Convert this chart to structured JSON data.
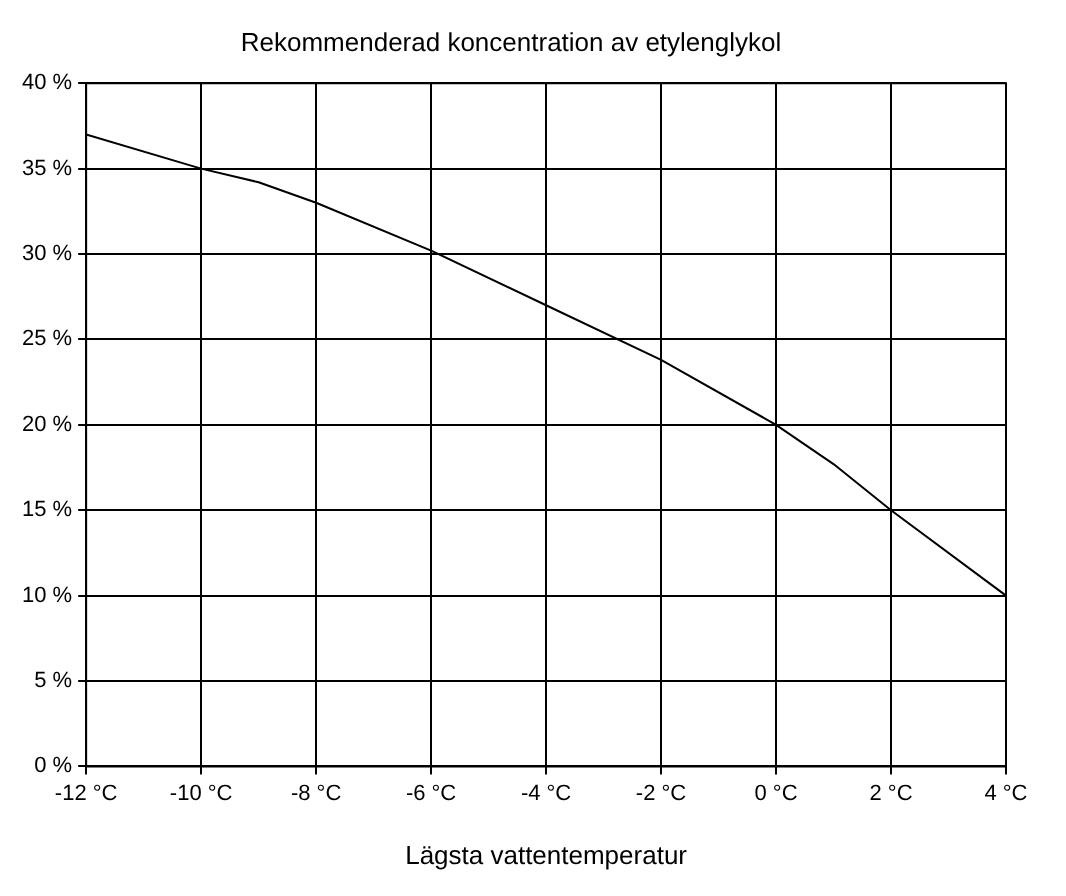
{
  "chart_data": {
    "type": "line",
    "title": "Rekommenderad koncentration av etylenglykol",
    "xlabel": "Lägsta vattentemperatur",
    "x": [
      -12,
      -10,
      -9,
      -8,
      -6,
      -4,
      -2,
      0,
      1,
      2,
      4
    ],
    "series": [
      {
        "color": "#000000",
        "values": [
          37,
          35,
          34.2,
          33,
          30.2,
          27,
          23.8,
          20,
          17.7,
          15,
          10
        ]
      }
    ],
    "xlim": [
      -12,
      4
    ],
    "xticks": [
      {
        "value": -12,
        "label": "-12 °C"
      },
      {
        "value": -10,
        "label": "-10 °C"
      },
      {
        "value": -8,
        "label": "-8 °C"
      },
      {
        "value": -6,
        "label": "-6 °C"
      },
      {
        "value": -4,
        "label": "-4 °C"
      },
      {
        "value": -2,
        "label": "-2 °C"
      },
      {
        "value": 0,
        "label": "0 °C"
      },
      {
        "value": 2,
        "label": "2 °C"
      },
      {
        "value": 4,
        "label": "4 °C"
      }
    ],
    "ylim": [
      0,
      40
    ],
    "yticks": [
      {
        "value": 0,
        "label": "0 %"
      },
      {
        "value": 5,
        "label": "5 %"
      },
      {
        "value": 10,
        "label": "10 %"
      },
      {
        "value": 15,
        "label": "15 %"
      },
      {
        "value": 20,
        "label": "20 %"
      },
      {
        "value": 25,
        "label": "25 %"
      },
      {
        "value": 30,
        "label": "30 %"
      },
      {
        "value": 35,
        "label": "35 %"
      },
      {
        "value": 40,
        "label": "40 %"
      }
    ],
    "grid": true,
    "legend": false,
    "marker": "none",
    "line_style": "solid"
  }
}
